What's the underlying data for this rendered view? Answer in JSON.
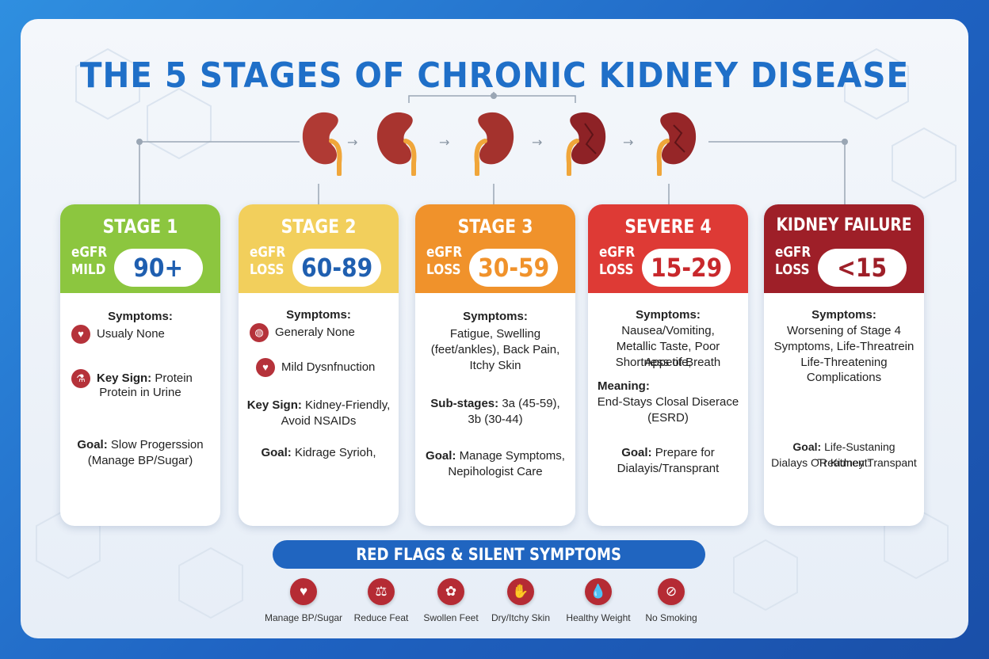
{
  "title": "THE 5 STAGES OF CHRONIC KIDNEY DISEASE",
  "colors": {
    "stage1": "#8cc63f",
    "stage2": "#f2cf5c",
    "stage3": "#f0922b",
    "stage4": "#de3a35",
    "stage5": "#9e1f28",
    "accent_blue": "#1f6fc8"
  },
  "stages": [
    {
      "title": "STAGE 1",
      "egfr_label": "eGFR",
      "severity": "MILD",
      "range": "90+",
      "symptoms_label": "Symptoms:",
      "symptom_text": "Usualy None",
      "symptom_icon": "kidney-icon",
      "keysign_label": "Key Sign:",
      "keysign_text_1": "Protein",
      "keysign_text_2": "Protein in Urine",
      "keysign_icon": "flask-icon",
      "goal_label": "Goal:",
      "goal_text_1": "Slow Progerssion",
      "goal_text_2": "(Manage BP/Sugar)"
    },
    {
      "title": "STAGE 2",
      "egfr_label": "eGFR",
      "severity": "LOSS",
      "range": "60-89",
      "symptoms_label": "Symptoms:",
      "symptom_text": "Generaly None",
      "symptom_icon": "bottle-icon",
      "extra_text": "Mild Dysnfnuction",
      "extra_icon": "kidney-icon",
      "keysign_label": "Key Sign:",
      "keysign_text_1": "Kidney-Friendly,",
      "keysign_text_2": "Avoid NSAIDs",
      "goal_label": "Goal:",
      "goal_text_1": "Kidrage Syrioh,"
    },
    {
      "title": "STAGE 3",
      "egfr_label": "eGFR",
      "severity": "LOSS",
      "range": "30-59",
      "symptoms_label": "Symptoms:",
      "symptom_lines": [
        "Fatigue, Swelling",
        "(feet/ankles), Back Pain,",
        "Itchy Skin"
      ],
      "substages_label": "Sub-stages:",
      "substages_text_1": "3a (45-59),",
      "substages_text_2": "3b (30-44)",
      "goal_label": "Goal:",
      "goal_text_1": "Manage Symptoms,",
      "goal_text_2": "Nepihologist Care"
    },
    {
      "title": "SEVERE 4",
      "egfr_label": "eGFR",
      "severity": "LOSS",
      "range": "15-29",
      "symptoms_label": "Symptoms:",
      "symptom_lines": [
        "Nausea/Vomiting,",
        "Metallic Taste, Poor Appetite,",
        "Shortness of Breath"
      ],
      "meaning_label": "Meaning:",
      "meaning_text_1": "End-Stays Closal Diserace",
      "meaning_text_2": "(ESRD)",
      "goal_label": "Goal:",
      "goal_text_1": "Prepare for",
      "goal_text_2": "Dialayis/Transprant"
    },
    {
      "title": "KIDNEY FAILURE",
      "egfr_label": "eGFR",
      "severity": "LOSS",
      "range": "<15",
      "symptoms_label": "Symptoms:",
      "symptom_lines": [
        "Worsening of Stage 4",
        "Symptoms, Life-Threatrein",
        "Life-Threatening",
        "Complications"
      ],
      "goal_label": "Goal:",
      "goal_text_1": "Life-Sustaning Treatment:",
      "goal_text_2": "Dialays OR Kidney Transpant"
    }
  ],
  "banner": "RED FLAGS & SILENT SYMPTOMS",
  "flags": [
    {
      "label": "Manage BP/Sugar",
      "icon": "heart-icon"
    },
    {
      "label": "Reduce Feat",
      "icon": "scale-icon"
    },
    {
      "label": "Swollen Feet",
      "icon": "feet-icon"
    },
    {
      "label": "Dry/Itchy Skin",
      "icon": "skin-icon"
    },
    {
      "label": "Healthy Weight",
      "icon": "drop-icon"
    },
    {
      "label": "No Smoking",
      "icon": "no-smoking-icon"
    }
  ]
}
